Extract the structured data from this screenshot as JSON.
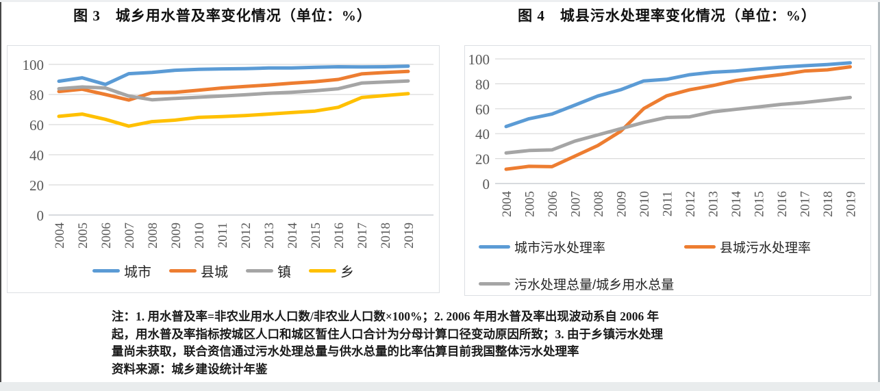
{
  "figures": [
    {
      "title": "图 3　城乡用水普及率变化情况（单位：%）"
    },
    {
      "title": "图 4　城县污水处理率变化情况（单位：%）"
    }
  ],
  "chart_data": [
    {
      "type": "line",
      "title": "图 3　城乡用水普及率变化情况（单位：%）",
      "x": [
        "2004",
        "2005",
        "2006",
        "2007",
        "2008",
        "2009",
        "2010",
        "2011",
        "2012",
        "2013",
        "2014",
        "2015",
        "2016",
        "2017",
        "2018",
        "2019"
      ],
      "ylim": [
        0,
        100
      ],
      "y_ticks": [
        0,
        20,
        40,
        60,
        80,
        100
      ],
      "grid": true,
      "legend_position": "bottom",
      "series": [
        {
          "name": "城市",
          "color": "#5B9BD5",
          "values": [
            88.8,
            91.1,
            86.7,
            93.8,
            94.7,
            96.1,
            96.7,
            97.0,
            97.2,
            97.6,
            97.6,
            98.1,
            98.4,
            98.3,
            98.4,
            98.8
          ]
        },
        {
          "name": "县城",
          "color": "#ED7D31",
          "values": [
            82.0,
            83.5,
            80.0,
            76.3,
            81.2,
            81.5,
            82.8,
            84.3,
            85.3,
            86.3,
            87.5,
            88.5,
            90.0,
            93.7,
            94.6,
            95.3
          ]
        },
        {
          "name": "镇",
          "color": "#A5A5A5",
          "values": [
            83.8,
            85.0,
            84.3,
            79.0,
            76.5,
            77.4,
            78.2,
            79.0,
            79.8,
            80.8,
            81.5,
            82.5,
            83.8,
            87.6,
            88.3,
            89.0
          ]
        },
        {
          "name": "乡",
          "color": "#FFC000",
          "values": [
            65.5,
            67.0,
            63.5,
            59.0,
            62.0,
            63.0,
            64.8,
            65.3,
            66.0,
            67.0,
            68.0,
            69.0,
            71.5,
            78.0,
            79.3,
            80.6
          ]
        }
      ]
    },
    {
      "type": "line",
      "title": "图 4　城县污水处理率变化情况（单位：%）",
      "x": [
        "2004",
        "2005",
        "2006",
        "2007",
        "2008",
        "2009",
        "2010",
        "2011",
        "2012",
        "2013",
        "2014",
        "2015",
        "2016",
        "2017",
        "2018",
        "2019"
      ],
      "ylim": [
        0,
        100
      ],
      "y_ticks": [
        0,
        20,
        40,
        60,
        80,
        100
      ],
      "grid": true,
      "legend_position": "bottom",
      "series": [
        {
          "name": "城市污水处理率",
          "color": "#5B9BD5",
          "values": [
            45.7,
            52.0,
            55.7,
            62.9,
            70.2,
            75.3,
            82.3,
            83.6,
            87.3,
            89.3,
            90.2,
            91.9,
            93.4,
            94.5,
            95.5,
            96.8
          ]
        },
        {
          "name": "县城污水处理率",
          "color": "#ED7D31",
          "values": [
            11.5,
            13.8,
            13.5,
            22.0,
            30.5,
            42.0,
            60.1,
            70.4,
            75.2,
            78.5,
            82.6,
            85.2,
            87.4,
            90.2,
            91.2,
            93.6
          ]
        },
        {
          "name": "污水处理总量/城乡用水总量",
          "color": "#A5A5A5",
          "values": [
            24.5,
            26.5,
            27.0,
            34.0,
            39.0,
            44.0,
            49.0,
            53.0,
            53.5,
            57.5,
            59.5,
            61.5,
            63.5,
            65.0,
            67.0,
            69.0
          ]
        }
      ]
    }
  ],
  "notes": {
    "lines": [
      "注：1. 用水普及率=非农业用水人口数/非农业人口数×100%；2. 2006 年用水普及率出现波动系自 2006 年",
      "起，用水普及率指标按城区人口和城区暂住人口合计为分母计算口径变动原因所致；3. 由于乡镇污水处理",
      "量尚未获取，联合资信通过污水处理总量与供水总量的比率估算目前我国整体污水处理率",
      "资料来源：城乡建设统计年鉴"
    ]
  },
  "colors": {
    "grid": "#D9D9D9",
    "axis_line": "#BFC4C9",
    "tick_text": "#595959"
  }
}
